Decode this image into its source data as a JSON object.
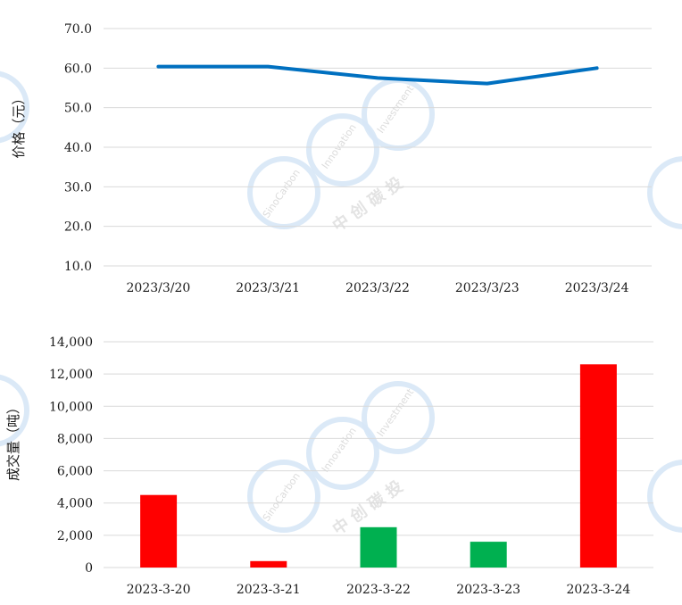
{
  "chart_data": [
    {
      "type": "line",
      "ylabel": "价格（元）",
      "xlabel": "",
      "categories": [
        "2023/3/20",
        "2023/3/21",
        "2023/3/22",
        "2023/3/23",
        "2023/3/24"
      ],
      "values": [
        60.4,
        60.4,
        57.5,
        56.1,
        60.0
      ],
      "ylim": [
        10,
        70
      ],
      "yticks": [
        "10.0",
        "20.0",
        "30.0",
        "40.0",
        "50.0",
        "60.0",
        "70.0"
      ],
      "grid": true,
      "legend": "none",
      "color": "#0070c0"
    },
    {
      "type": "bar",
      "ylabel": "成交量（吨）",
      "xlabel": "",
      "categories": [
        "2023-3-20",
        "2023-3-21",
        "2023-3-22",
        "2023-3-23",
        "2023-3-24"
      ],
      "values": [
        4500,
        400,
        2500,
        1600,
        12600
      ],
      "bar_colors": [
        "#ff0000",
        "#ff0000",
        "#00b050",
        "#00b050",
        "#ff0000"
      ],
      "ylim": [
        0,
        14000
      ],
      "yticks": [
        "0",
        "2,000",
        "4,000",
        "6,000",
        "8,000",
        "10,000",
        "12,000",
        "14,000"
      ],
      "grid": true,
      "legend": "none"
    }
  ]
}
